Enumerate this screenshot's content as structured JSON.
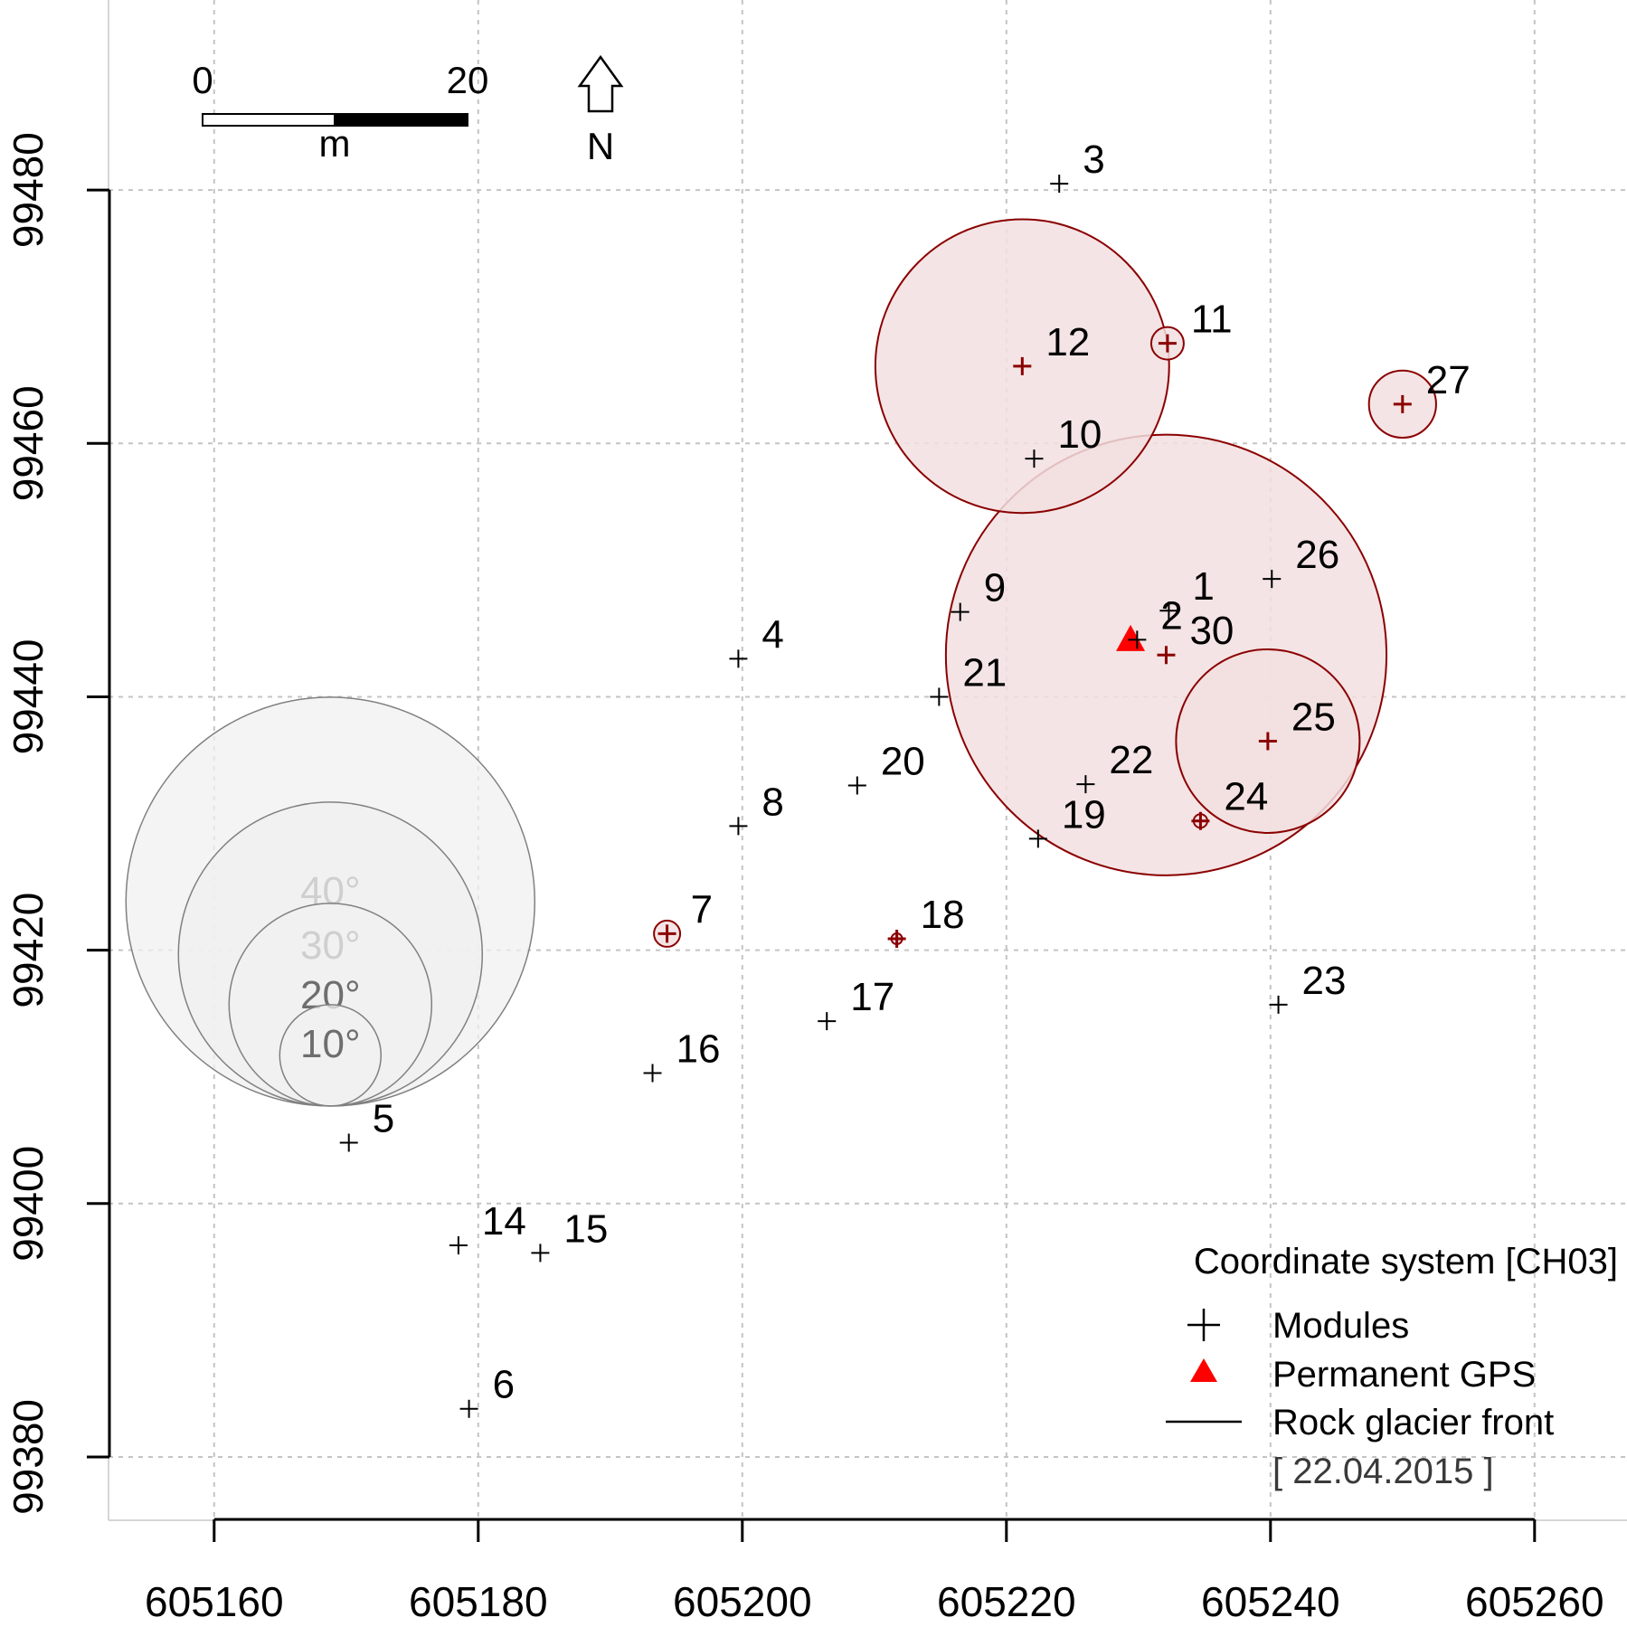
{
  "chart_data": {
    "type": "scatter",
    "title": "",
    "xlabel": "",
    "ylabel": "",
    "xlim": [
      605152,
      605267
    ],
    "ylim": [
      99375,
      99495
    ],
    "x_ticks": [
      605160,
      605180,
      605200,
      605220,
      605240,
      605260
    ],
    "y_ticks": [
      99380,
      99400,
      99420,
      99440,
      99460,
      99480
    ],
    "grid": true,
    "legend_position": "bottom-right",
    "colors": {
      "module": "#000000",
      "highlight": "#8b0000",
      "circle_fill": "#f2dfe0",
      "gps": "#ff0000",
      "reference_circle": "#808080",
      "reference_fill": "#f0f0f0"
    },
    "modules": [
      {
        "id": "1",
        "x": 605232.3,
        "y": 99446.8,
        "circle_deg": 0
      },
      {
        "id": "2",
        "x": 605229.9,
        "y": 99444.5,
        "circle_deg": 0
      },
      {
        "id": "3",
        "x": 605224.0,
        "y": 99480.5,
        "circle_deg": 0
      },
      {
        "id": "4",
        "x": 605199.7,
        "y": 99443.0,
        "circle_deg": 0
      },
      {
        "id": "5",
        "x": 605170.2,
        "y": 99404.8,
        "circle_deg": 0
      },
      {
        "id": "6",
        "x": 605179.3,
        "y": 99383.8,
        "circle_deg": 0
      },
      {
        "id": "7",
        "x": 605194.3,
        "y": 99421.3,
        "circle_deg": 2.5,
        "highlight": true
      },
      {
        "id": "8",
        "x": 605199.7,
        "y": 99429.8,
        "circle_deg": 0
      },
      {
        "id": "9",
        "x": 605216.5,
        "y": 99446.7,
        "circle_deg": 0
      },
      {
        "id": "10",
        "x": 605222.1,
        "y": 99458.8,
        "circle_deg": 0
      },
      {
        "id": "11",
        "x": 605232.2,
        "y": 99467.9,
        "circle_deg": 3.1,
        "highlight": true
      },
      {
        "id": "12",
        "x": 605221.2,
        "y": 99466.1,
        "circle_deg": 28,
        "highlight": true
      },
      {
        "id": "14",
        "x": 605178.5,
        "y": 99396.7,
        "circle_deg": 0
      },
      {
        "id": "15",
        "x": 605184.7,
        "y": 99396.1,
        "circle_deg": 0
      },
      {
        "id": "16",
        "x": 605193.2,
        "y": 99410.3,
        "circle_deg": 0
      },
      {
        "id": "17",
        "x": 605206.4,
        "y": 99414.4,
        "circle_deg": 0
      },
      {
        "id": "18",
        "x": 605211.7,
        "y": 99420.9,
        "circle_deg": 0.9,
        "highlight": true
      },
      {
        "id": "19",
        "x": 605222.4,
        "y": 99428.8,
        "circle_deg": 0
      },
      {
        "id": "20",
        "x": 605208.7,
        "y": 99433.0,
        "circle_deg": 0
      },
      {
        "id": "21",
        "x": 605214.9,
        "y": 99440.0,
        "circle_deg": 0
      },
      {
        "id": "22",
        "x": 605226.0,
        "y": 99433.1,
        "circle_deg": 0
      },
      {
        "id": "23",
        "x": 605240.6,
        "y": 99415.7,
        "circle_deg": 0
      },
      {
        "id": "24",
        "x": 605234.7,
        "y": 99430.2,
        "circle_deg": 1.3,
        "highlight": true
      },
      {
        "id": "25",
        "x": 605239.8,
        "y": 99436.5,
        "circle_deg": 17.5,
        "highlight": true
      },
      {
        "id": "26",
        "x": 605240.1,
        "y": 99449.3,
        "circle_deg": 0
      },
      {
        "id": "27",
        "x": 605250.0,
        "y": 99463.1,
        "circle_deg": 6.4,
        "highlight": true
      },
      {
        "id": "30",
        "x": 605232.1,
        "y": 99443.3,
        "circle_deg": 42,
        "highlight": true
      }
    ],
    "permanent_gps": {
      "x": 605229.4,
      "y": 99444.4
    },
    "reference_circles": [
      {
        "label": "40°",
        "deg": 40
      },
      {
        "label": "30°",
        "deg": 30
      },
      {
        "label": "20°",
        "deg": 20
      },
      {
        "label": "10°",
        "deg": 10
      }
    ],
    "scale_bar": {
      "min_label": "0",
      "max_label": "20",
      "unit": "m"
    },
    "north_arrow": "N",
    "legend": {
      "title": "Coordinate system [CH03]",
      "items": [
        {
          "symbol": "plus",
          "label": "Modules"
        },
        {
          "symbol": "triangle",
          "label": "Permanent GPS"
        },
        {
          "symbol": "line",
          "label": "Rock glacier front"
        }
      ],
      "date": "[ 22.04.2015 ]"
    }
  }
}
